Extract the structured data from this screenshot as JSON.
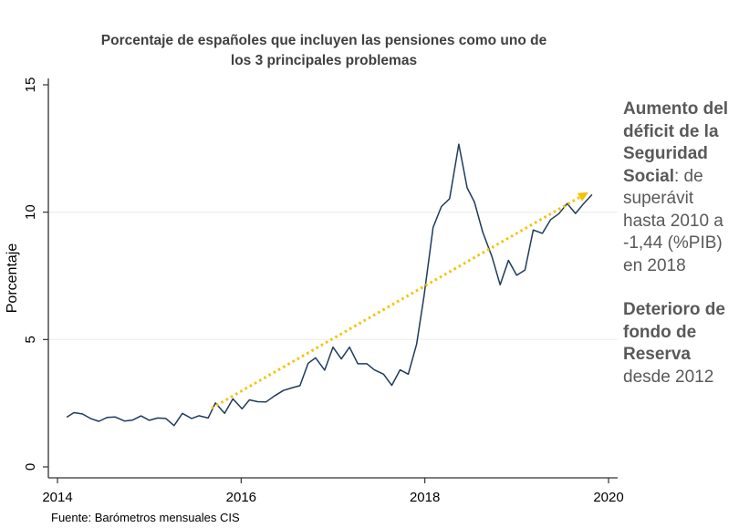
{
  "chart_data": {
    "type": "line",
    "title": "Porcentaje de españoles que incluyen las pensiones como uno de los 3 principales problemas",
    "title_lines": [
      "Porcentaje de españoles que incluyen las pensiones como uno de",
      "los 3 principales problemas"
    ],
    "ylabel": "Porcentaje",
    "xlabel": "",
    "xlim": [
      2014,
      2020
    ],
    "ylim": [
      0,
      15
    ],
    "xticks": [
      "2014",
      "2016",
      "2018",
      "2020"
    ],
    "yticks": [
      "0",
      "5",
      "10",
      "15"
    ],
    "grid": "horizontal",
    "series": [
      {
        "color": "#1f3b5a",
        "x": [
          2014.1,
          2014.18,
          2014.27,
          2014.36,
          2014.45,
          2014.54,
          2014.63,
          2014.73,
          2014.82,
          2014.91,
          2015.0,
          2015.09,
          2015.18,
          2015.27,
          2015.36,
          2015.46,
          2015.54,
          2015.64,
          2015.72,
          2015.82,
          2015.91,
          2016.01,
          2016.09,
          2016.18,
          2016.27,
          2016.36,
          2016.46,
          2016.55,
          2016.64,
          2016.73,
          2016.81,
          2016.91,
          2017.0,
          2017.09,
          2017.18,
          2017.27,
          2017.37,
          2017.45,
          2017.55,
          2017.64,
          2017.73,
          2017.82,
          2017.91,
          2017.99,
          2018.09,
          2018.18,
          2018.27,
          2018.37,
          2018.46,
          2018.54,
          2018.63,
          2018.73,
          2018.82,
          2018.91,
          2019.0,
          2019.09,
          2019.18,
          2019.28,
          2019.37,
          2019.46,
          2019.55,
          2019.64,
          2019.73,
          2019.82
        ],
        "y": [
          1.95,
          2.13,
          2.08,
          1.9,
          1.79,
          1.94,
          1.96,
          1.8,
          1.84,
          2.0,
          1.83,
          1.92,
          1.9,
          1.62,
          2.1,
          1.9,
          2.01,
          1.92,
          2.51,
          2.1,
          2.67,
          2.28,
          2.63,
          2.56,
          2.55,
          2.78,
          3.0,
          3.1,
          3.19,
          4.07,
          4.28,
          3.8,
          4.7,
          4.24,
          4.7,
          4.05,
          4.05,
          3.81,
          3.64,
          3.2,
          3.81,
          3.64,
          4.81,
          6.69,
          9.4,
          10.22,
          10.53,
          12.67,
          10.96,
          10.4,
          9.22,
          8.26,
          7.15,
          8.11,
          7.52,
          7.73,
          9.3,
          9.17,
          9.71,
          9.94,
          10.34,
          9.95,
          10.34,
          10.69
        ]
      }
    ],
    "annotations": [
      {
        "type": "arrow",
        "style": "dotted",
        "color": "#f5c200",
        "from": [
          2015.68,
          2.31
        ],
        "to": [
          2019.78,
          10.78
        ]
      }
    ]
  },
  "side_text": {
    "block1_bold": "Aumento del déficit de la Seguridad Social",
    "block1_rest": ": de superávit hasta 2010 a -1,44 (%PIB) en 2018",
    "block2_bold": "Deterioro de fondo de Reserva",
    "block2_rest": " desde 2012"
  },
  "source": "Fuente: Barómetros mensuales CIS"
}
